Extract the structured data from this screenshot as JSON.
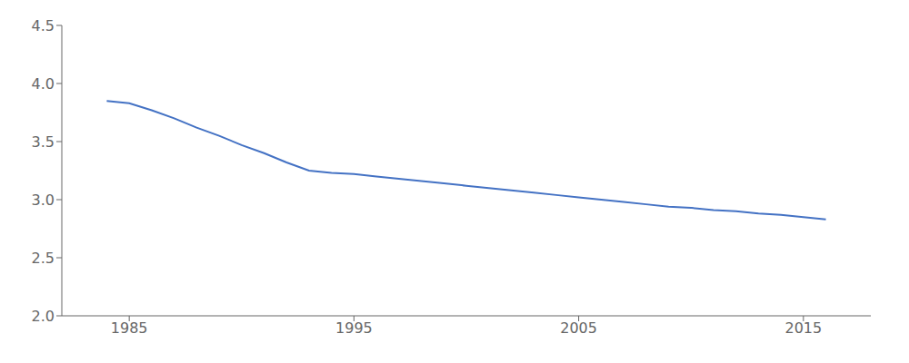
{
  "chart_data": {
    "type": "line",
    "x": [
      1984,
      1985,
      1986,
      1987,
      1988,
      1989,
      1990,
      1991,
      1992,
      1993,
      1994,
      1995,
      1996,
      1997,
      1998,
      1999,
      2000,
      2001,
      2002,
      2003,
      2004,
      2005,
      2006,
      2007,
      2008,
      2009,
      2010,
      2011,
      2012,
      2013,
      2014,
      2015,
      2016
    ],
    "values": [
      3.85,
      3.83,
      3.77,
      3.7,
      3.62,
      3.55,
      3.47,
      3.4,
      3.32,
      3.25,
      3.23,
      3.22,
      3.2,
      3.18,
      3.16,
      3.14,
      3.12,
      3.1,
      3.08,
      3.06,
      3.04,
      3.02,
      3.0,
      2.98,
      2.96,
      2.94,
      2.93,
      2.91,
      2.9,
      2.88,
      2.87,
      2.85,
      2.83
    ],
    "color": "#4472c4",
    "xlim": [
      1982,
      2018
    ],
    "ylim": [
      2.0,
      4.5
    ],
    "xticks": [
      1985,
      1995,
      2005,
      2015
    ],
    "yticks": [
      {
        "value": 2.0,
        "label": "2.0"
      },
      2.5,
      {
        "value": 3.0,
        "label": "3.0"
      },
      3.5,
      {
        "value": 4.0,
        "label": "4.0"
      },
      4.5
    ],
    "grid": false
  }
}
